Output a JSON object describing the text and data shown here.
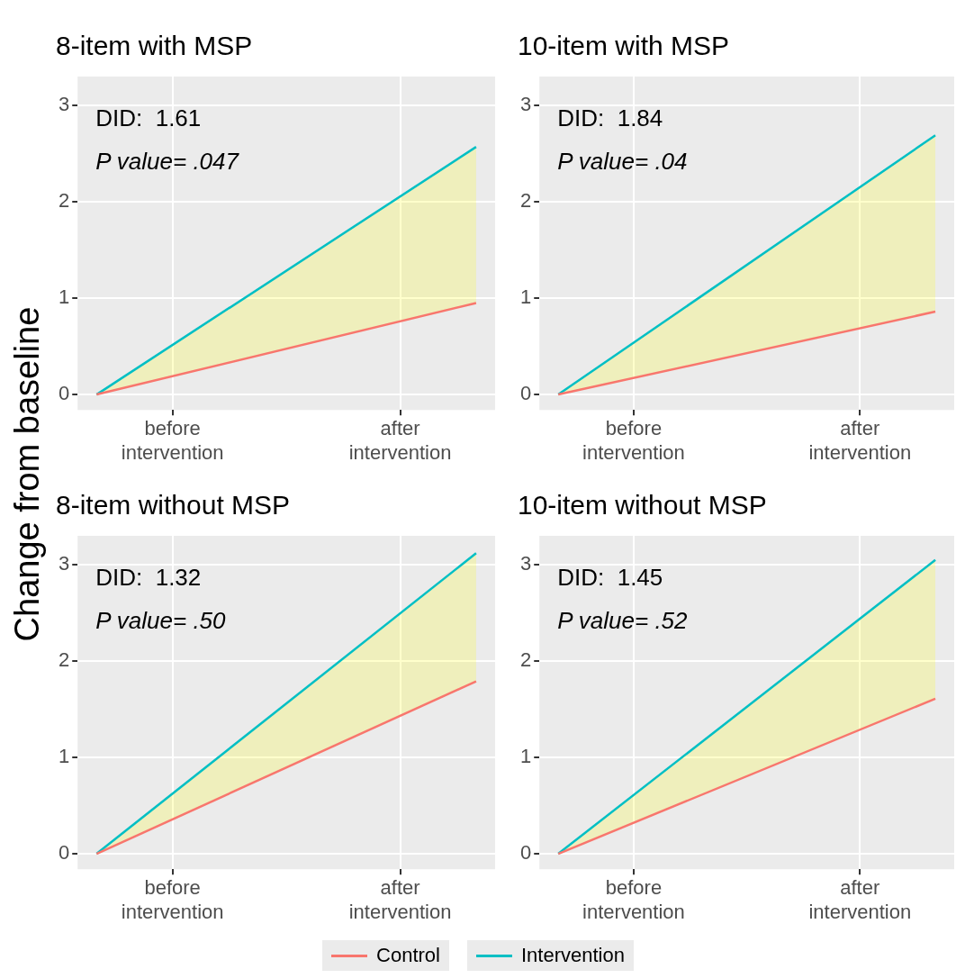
{
  "chart_data": [
    {
      "type": "line",
      "title": "8-item with MSP",
      "ylabel": "Change from baseline",
      "annotations": [
        "DID:  1.61",
        "P value= .047"
      ],
      "categories": [
        null,
        "before\nintervention",
        null,
        null,
        "after\nintervention",
        null
      ],
      "ylim": [
        -0.16,
        3.3
      ],
      "yticks": [
        0,
        1,
        2,
        3
      ],
      "grid": true,
      "legend": "bottom",
      "series": [
        {
          "name": "Control",
          "color": "#f8766d",
          "values": [
            0,
            null,
            null,
            null,
            null,
            0.95
          ]
        },
        {
          "name": "Intervention",
          "color": "#00bfc4",
          "values": [
            0,
            null,
            null,
            null,
            null,
            2.57
          ],
          "lower": [
            0,
            null,
            null,
            null,
            null,
            0.95
          ],
          "upper": [
            0,
            null,
            null,
            null,
            null,
            2.57
          ]
        }
      ]
    },
    {
      "type": "line",
      "title": "10-item with MSP",
      "annotations": [
        "DID:  1.84",
        "P value= .04"
      ],
      "categories": [
        null,
        "before\nintervention",
        null,
        null,
        "after\nintervention",
        null
      ],
      "ylim": [
        -0.16,
        3.3
      ],
      "yticks": [
        0,
        1,
        2,
        3
      ],
      "grid": true,
      "series": [
        {
          "name": "Control",
          "color": "#f8766d",
          "values": [
            0,
            null,
            null,
            null,
            null,
            0.86
          ]
        },
        {
          "name": "Intervention",
          "color": "#00bfc4",
          "values": [
            0,
            null,
            null,
            null,
            null,
            2.69
          ],
          "lower": [
            0,
            null,
            null,
            null,
            null,
            0.86
          ],
          "upper": [
            0,
            null,
            null,
            null,
            null,
            2.69
          ]
        }
      ]
    },
    {
      "type": "line",
      "title": "8-item without MSP",
      "annotations": [
        "DID:  1.32",
        "P value= .50"
      ],
      "categories": [
        null,
        "before\nintervention",
        null,
        null,
        "after\nintervention",
        null
      ],
      "ylim": [
        -0.16,
        3.3
      ],
      "yticks": [
        0,
        1,
        2,
        3
      ],
      "grid": true,
      "series": [
        {
          "name": "Control",
          "color": "#f8766d",
          "values": [
            0,
            null,
            null,
            null,
            null,
            1.79
          ]
        },
        {
          "name": "Intervention",
          "color": "#00bfc4",
          "values": [
            0,
            null,
            null,
            null,
            null,
            3.12
          ],
          "lower": [
            0,
            null,
            null,
            null,
            null,
            1.79
          ],
          "upper": [
            0,
            null,
            null,
            null,
            null,
            3.12
          ]
        }
      ]
    },
    {
      "type": "line",
      "title": "10-item without MSP",
      "annotations": [
        "DID:  1.45",
        "P value= .52"
      ],
      "categories": [
        null,
        "before\nintervention",
        null,
        null,
        "after\nintervention",
        null
      ],
      "ylim": [
        -0.16,
        3.3
      ],
      "yticks": [
        0,
        1,
        2,
        3
      ],
      "grid": true,
      "series": [
        {
          "name": "Control",
          "color": "#f8766d",
          "values": [
            0,
            null,
            null,
            null,
            null,
            1.61
          ]
        },
        {
          "name": "Intervention",
          "color": "#00bfc4",
          "values": [
            0,
            null,
            null,
            null,
            null,
            3.05
          ],
          "lower": [
            0,
            null,
            null,
            null,
            null,
            1.61
          ],
          "upper": [
            0,
            null,
            null,
            null,
            null,
            3.05
          ]
        }
      ]
    }
  ]
}
